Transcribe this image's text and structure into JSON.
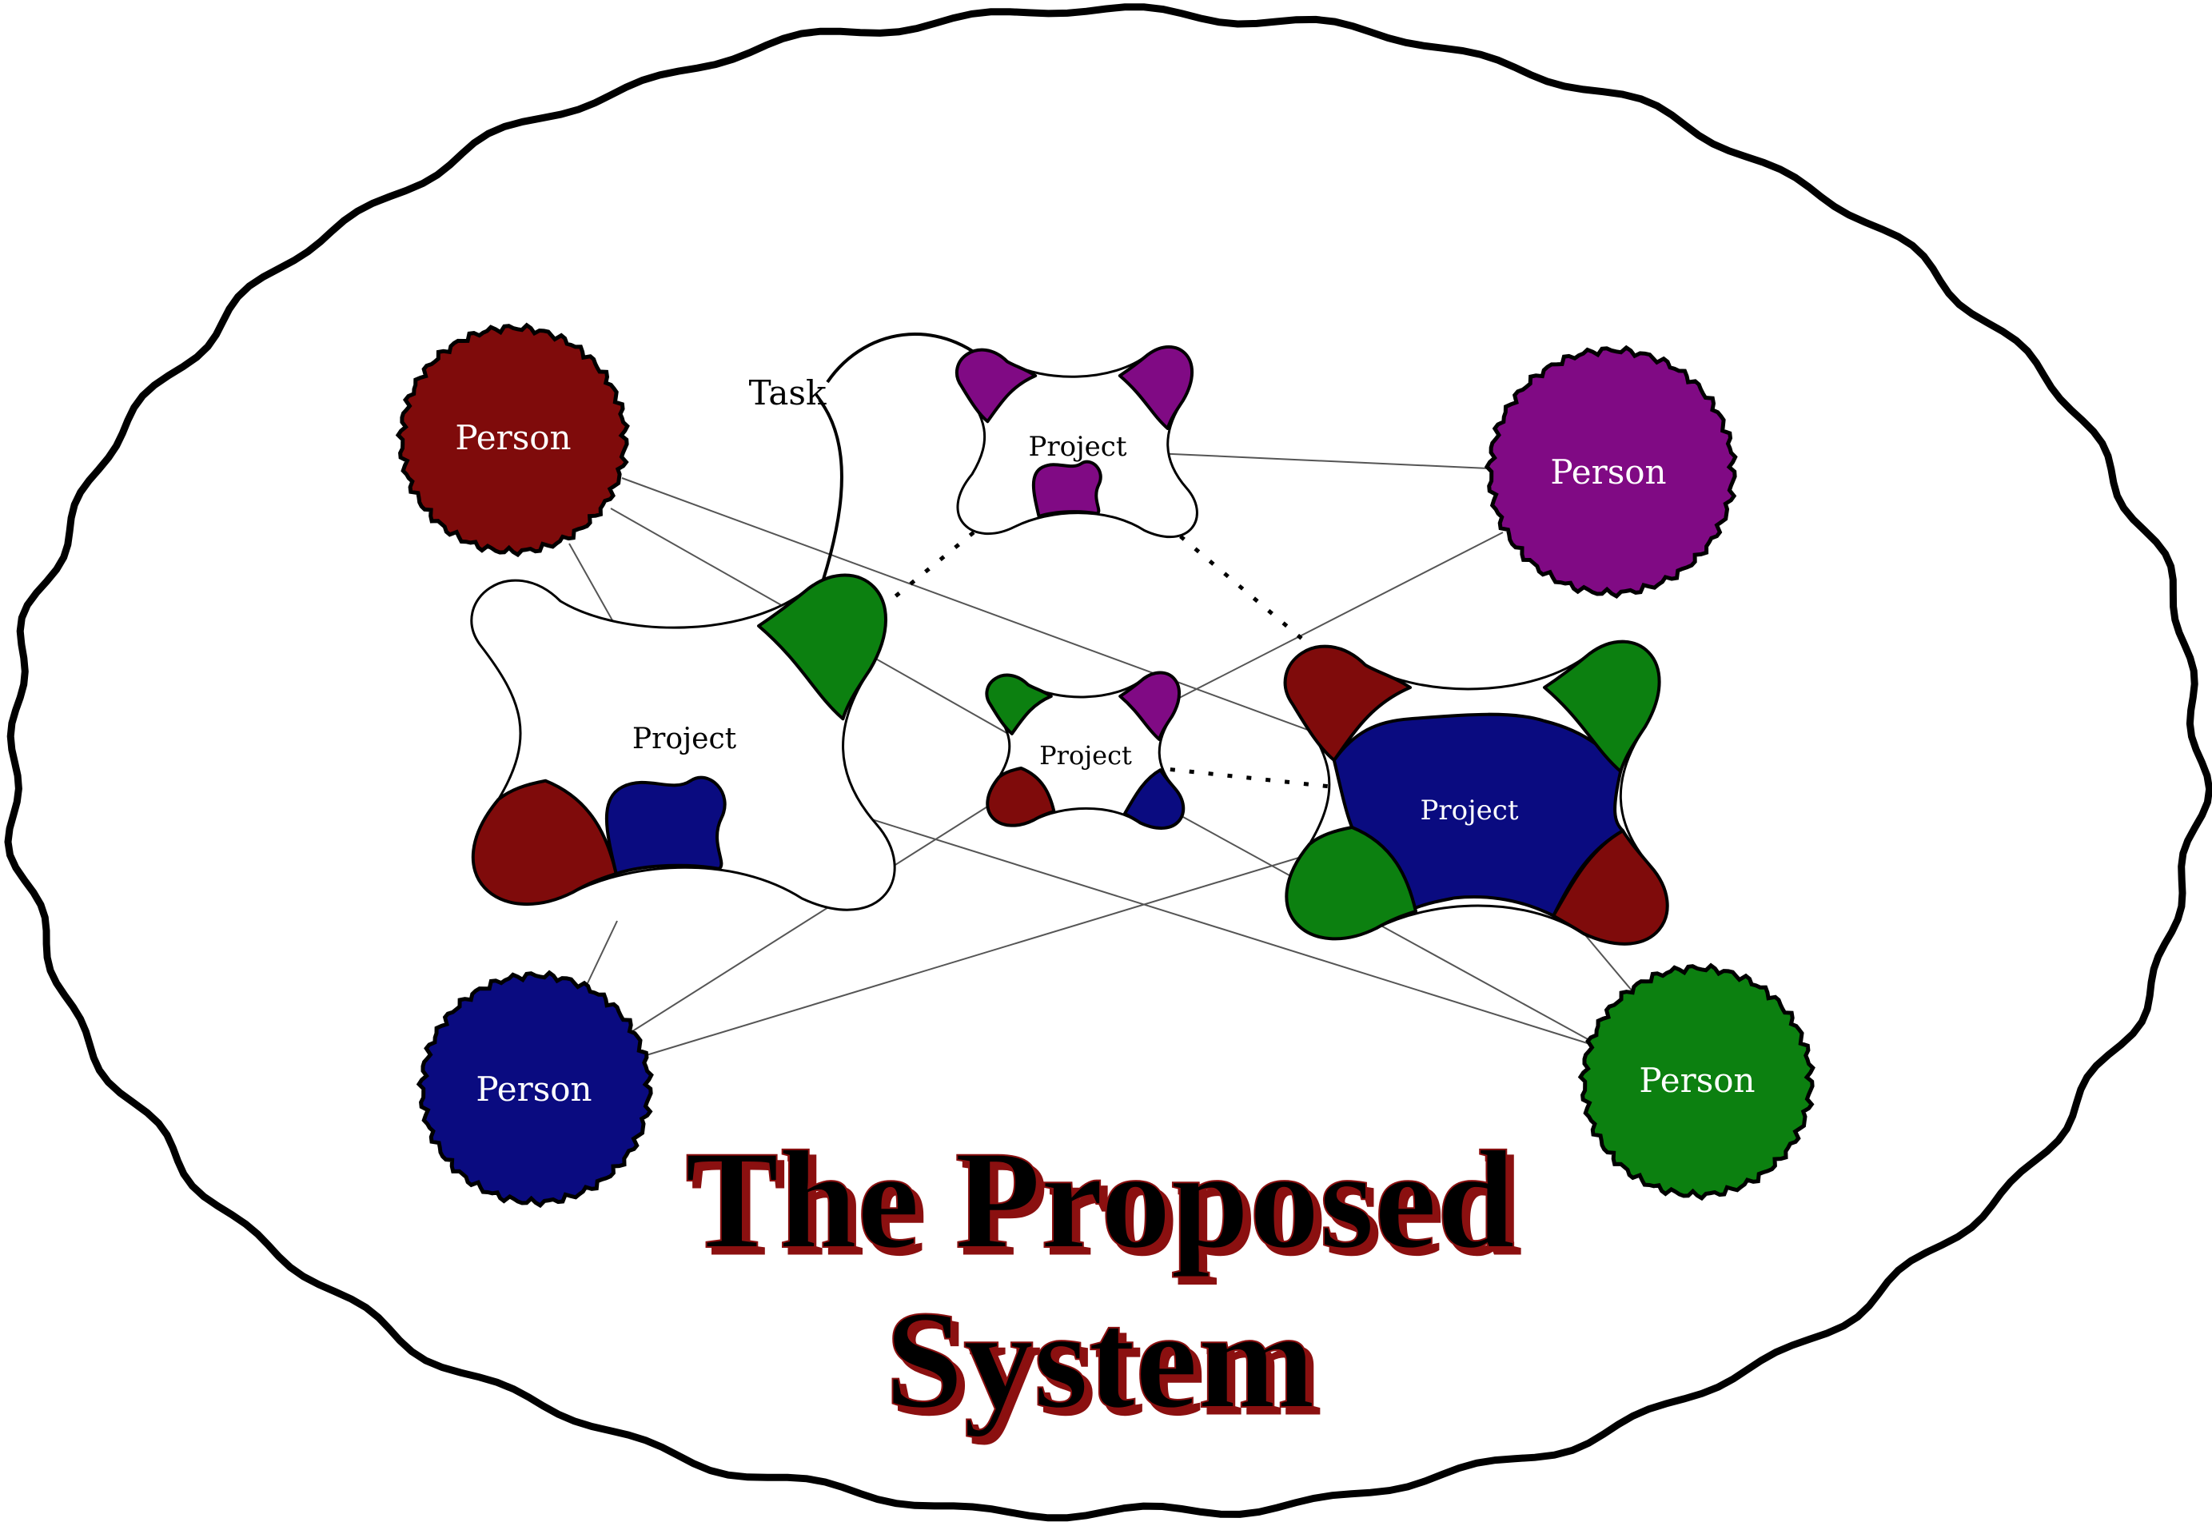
{
  "colors": {
    "person_red": "#7f0b0b",
    "person_purple": "#800a84",
    "person_blue": "#0a0b80",
    "person_green": "#0c8010",
    "outline": "#000000",
    "title_fill": "#000000",
    "title_accent": "#8b1010",
    "background": "#ffffff"
  },
  "persons": [
    {
      "id": "person-red",
      "label": "Person",
      "color": "#7f0b0b"
    },
    {
      "id": "person-purple",
      "label": "Person",
      "color": "#800a84"
    },
    {
      "id": "person-blue",
      "label": "Person",
      "color": "#0a0b80"
    },
    {
      "id": "person-green",
      "label": "Person",
      "color": "#0c8010"
    }
  ],
  "projects": [
    {
      "id": "project-top",
      "label": "Project"
    },
    {
      "id": "project-left",
      "label": "Project"
    },
    {
      "id": "project-center",
      "label": "Project"
    },
    {
      "id": "project-right",
      "label": "Project"
    }
  ],
  "task": {
    "label": "Task"
  },
  "title": {
    "line1": "The Proposed",
    "line2": "System"
  }
}
